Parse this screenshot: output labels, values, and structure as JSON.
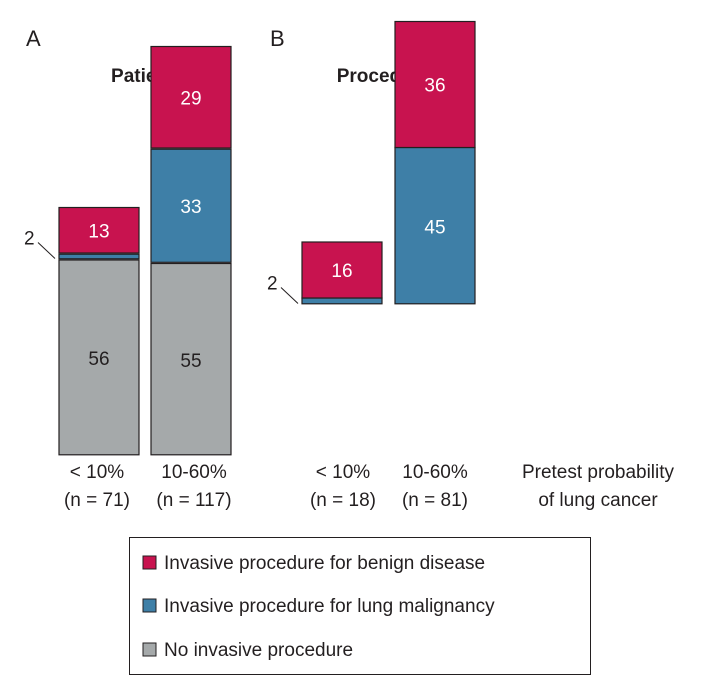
{
  "chart_data": [
    {
      "type": "bar",
      "stacked": true,
      "panel_label": "A",
      "title": "Patients",
      "categories": [
        "< 10%",
        "10-60%"
      ],
      "category_counts": [
        "(n = 71)",
        "(n = 117)"
      ],
      "series": [
        {
          "name": "No invasive procedure",
          "values": [
            56,
            55
          ],
          "color": "#a5a9aa"
        },
        {
          "name": "Invasive procedure for lung malignancy",
          "values": [
            2,
            33
          ],
          "color": "#3e7fa7"
        },
        {
          "name": "Invasive procedure for benign disease",
          "values": [
            13,
            29
          ],
          "color": "#c8134f"
        }
      ],
      "grid": false
    },
    {
      "type": "bar",
      "stacked": true,
      "panel_label": "B",
      "title": "Procedures",
      "categories": [
        "< 10%",
        "10-60%"
      ],
      "category_counts": [
        "(n = 18)",
        "(n = 81)"
      ],
      "series": [
        {
          "name": "Invasive procedure for lung malignancy",
          "values": [
            2,
            45
          ],
          "color": "#3e7fa7"
        },
        {
          "name": "Invasive procedure for benign disease",
          "values": [
            16,
            36
          ],
          "color": "#c8134f"
        }
      ],
      "grid": false
    }
  ],
  "xlabel_line1": "Pretest probability",
  "xlabel_line2": "of lung cancer",
  "legend": [
    {
      "label": "Invasive procedure for benign disease",
      "color": "#c8134f"
    },
    {
      "label": "Invasive procedure for lung malignancy",
      "color": "#3e7fa7"
    },
    {
      "label": "No invasive procedure",
      "color": "#a5a9aa"
    }
  ]
}
